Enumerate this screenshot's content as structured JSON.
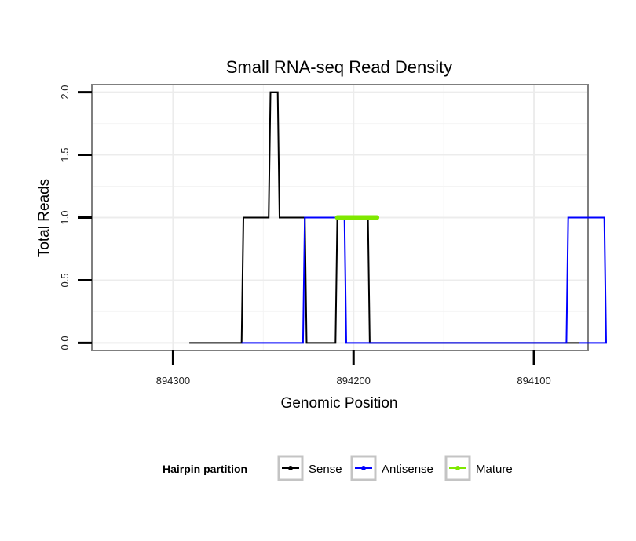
{
  "chart_data": {
    "type": "line",
    "title": "Small RNA-seq Read Density",
    "xlabel": "Genomic Position",
    "ylabel": "Total Reads",
    "xlim": [
      894345,
      894070
    ],
    "ylim": [
      -0.06,
      2.06
    ],
    "x_reversed": true,
    "grid": true,
    "x_ticks": [
      894300,
      894200,
      894100
    ],
    "x_tick_labels": [
      "894300",
      "894200",
      "894100"
    ],
    "y_ticks": [
      0.0,
      0.5,
      1.0,
      1.5,
      2.0
    ],
    "y_tick_labels": [
      "0.0",
      "0.5",
      "1.0",
      "1.5",
      "2.0"
    ],
    "legend_title": "Hairpin partition",
    "legend_position": "bottom",
    "series": [
      {
        "name": "Sense",
        "color": "#000000",
        "x": [
          894291,
          894262,
          894261,
          894247,
          894246,
          894242,
          894241,
          894227,
          894226,
          894210,
          894209,
          894192,
          894191,
          894170,
          894169,
          894075
        ],
        "y": [
          0,
          0,
          1,
          1,
          2,
          2,
          1,
          1,
          0,
          0,
          1,
          1,
          0,
          0,
          0,
          0
        ]
      },
      {
        "name": "Antisense",
        "color": "#0000ff",
        "x": [
          894262,
          894228,
          894227,
          894209,
          894208,
          894205,
          894204,
          894185,
          894184,
          894082,
          894081,
          894061,
          894060,
          894075
        ],
        "y": [
          0,
          0,
          1,
          1,
          1,
          1,
          0,
          0,
          0,
          0,
          1,
          1,
          0,
          0
        ]
      },
      {
        "name": "Mature",
        "color": "#7fe800",
        "x": [
          894209,
          894187
        ],
        "y": [
          1,
          1
        ]
      }
    ]
  }
}
